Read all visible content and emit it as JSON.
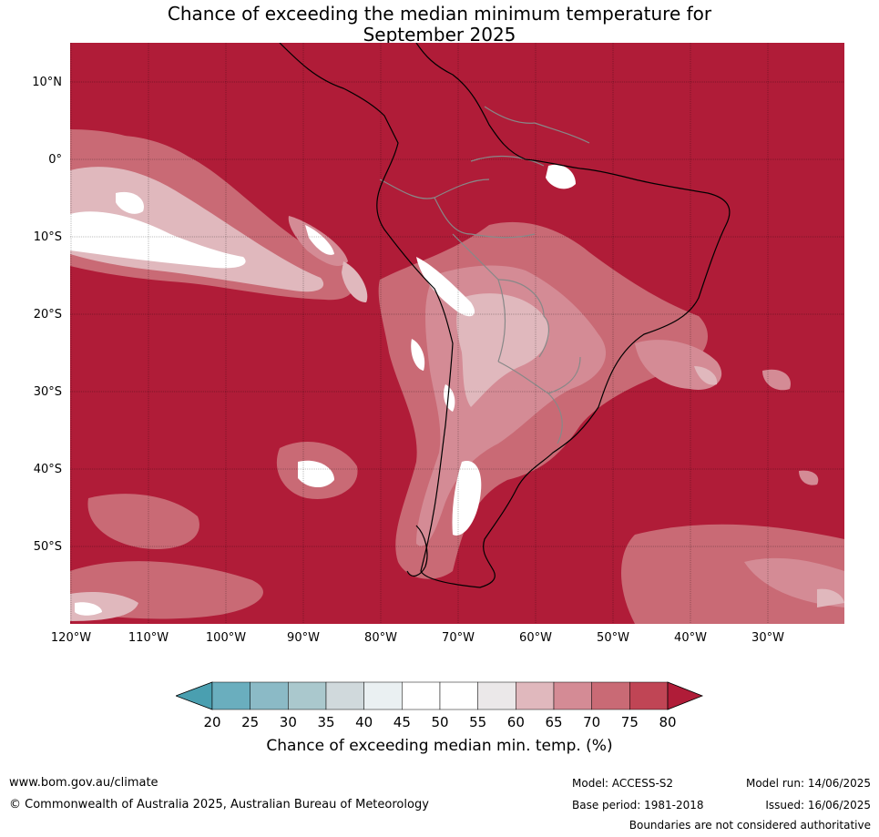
{
  "title_line1": "Chance of exceeding the median minimum temperature for",
  "title_line2": "September 2025",
  "lat_labels": [
    "10°N",
    "0°",
    "10°S",
    "20°S",
    "30°S",
    "40°S",
    "50°S"
  ],
  "lon_labels": [
    "120°W",
    "110°W",
    "100°W",
    "90°W",
    "80°W",
    "70°W",
    "60°W",
    "50°W",
    "40°W",
    "30°W"
  ],
  "colorbar": {
    "ticks": [
      "20",
      "25",
      "30",
      "35",
      "40",
      "45",
      "50",
      "55",
      "60",
      "65",
      "70",
      "75",
      "80"
    ],
    "colors": [
      "#4a9fb0",
      "#6aaebe",
      "#8bbac6",
      "#aac8cd",
      "#d0d9dc",
      "#eaf0f2",
      "#ffffff",
      "#ffffff",
      "#ebe8e9",
      "#e0b8bd",
      "#d48b95",
      "#c96a75",
      "#c04555",
      "#b01c38"
    ],
    "label": "Chance of exceeding median min. temp. (%)"
  },
  "colors": {
    "ocean_dominant": "#b01c38",
    "land_outline": "#000000",
    "borders": "#888888"
  },
  "footer": {
    "website": "www.bom.gov.au/climate",
    "copyright": "© Commonwealth of Australia 2025, Australian Bureau of Meteorology",
    "model": "Model: ACCESS-S2",
    "base_period": "Base period: 1981-2018",
    "model_run": "Model run: 14/06/2025",
    "issued": "Issued: 16/06/2025",
    "disclaimer": "Boundaries are not considered authoritative"
  }
}
